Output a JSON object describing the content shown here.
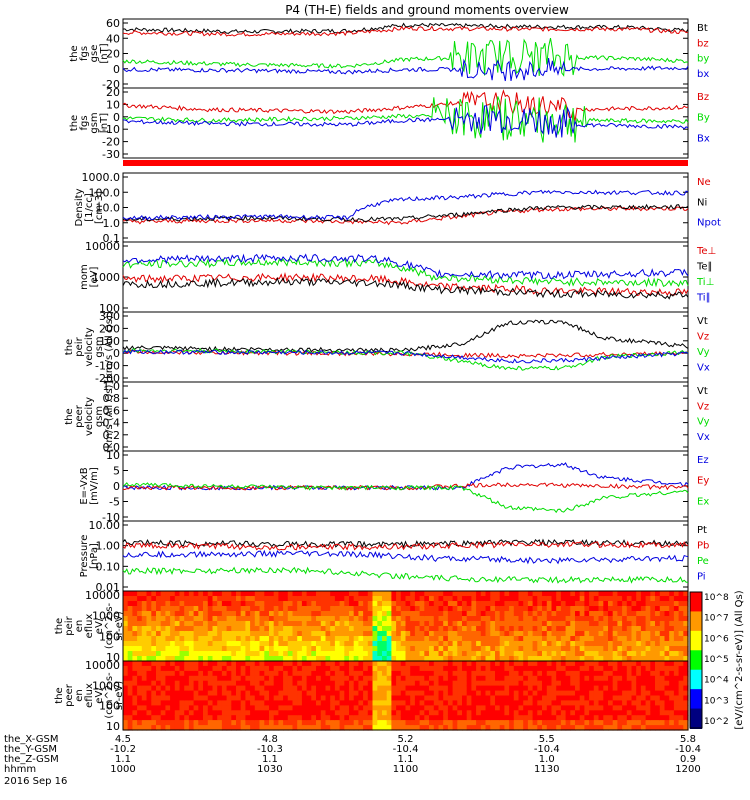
{
  "title": "P4 (TH-E) fields and ground moments overview",
  "colors": {
    "black": "#000000",
    "red": "#e00000",
    "green": "#00dd00",
    "blue": "#0000e0"
  },
  "chart_data": [
    {
      "id": "fgs_gse",
      "type": "line",
      "ylabel": [
        "the",
        "fgs",
        "gse",
        "[nT]"
      ],
      "yticks": [
        60,
        40,
        20,
        0,
        -20
      ],
      "ylim": [
        -20,
        62
      ],
      "series": [
        {
          "name": "Bt",
          "color": "black",
          "points": [
            [
              0,
              50
            ],
            [
              0.2,
              47
            ],
            [
              0.4,
              48
            ],
            [
              0.5,
              55
            ],
            [
              0.7,
              53
            ],
            [
              0.9,
              52
            ],
            [
              1,
              48
            ]
          ]
        },
        {
          "name": "bz",
          "color": "red",
          "points": [
            [
              0,
              46
            ],
            [
              0.2,
              44
            ],
            [
              0.4,
              45
            ],
            [
              0.5,
              51
            ],
            [
              0.7,
              50
            ],
            [
              0.9,
              50
            ],
            [
              1,
              46
            ]
          ]
        },
        {
          "name": "by",
          "color": "green",
          "points": [
            [
              0,
              12
            ],
            [
              0.2,
              8
            ],
            [
              0.4,
              6
            ],
            [
              0.5,
              14
            ],
            [
              0.7,
              18
            ],
            [
              0.9,
              15
            ],
            [
              1,
              12
            ]
          ],
          "osc": [
            [
              0.58,
              0.8,
              22
            ]
          ]
        },
        {
          "name": "bx",
          "color": "blue",
          "points": [
            [
              0,
              2
            ],
            [
              0.2,
              1
            ],
            [
              0.4,
              -1
            ],
            [
              0.5,
              2
            ],
            [
              0.7,
              2
            ],
            [
              0.9,
              3
            ],
            [
              1,
              4
            ]
          ],
          "osc": [
            [
              0.6,
              0.78,
              12
            ]
          ]
        }
      ]
    },
    {
      "id": "fgs_gsm",
      "type": "line",
      "ylabel": [
        "the",
        "fgs",
        "gsm",
        "[nT]"
      ],
      "yticks": [
        20,
        10,
        0,
        -10,
        -20,
        -30
      ],
      "ylim": [
        -37,
        28
      ],
      "series": [
        {
          "name": "Bz",
          "color": "red",
          "points": [
            [
              0,
              12
            ],
            [
              0.15,
              8
            ],
            [
              0.4,
              6
            ],
            [
              0.5,
              10
            ],
            [
              0.65,
              16
            ],
            [
              0.8,
              8
            ],
            [
              1,
              10
            ]
          ],
          "osc": [
            [
              0.6,
              0.8,
              10
            ]
          ]
        },
        {
          "name": "By",
          "color": "green",
          "points": [
            [
              0,
              0
            ],
            [
              0.15,
              -2
            ],
            [
              0.4,
              0
            ],
            [
              0.5,
              2
            ],
            [
              0.65,
              0
            ],
            [
              0.8,
              -2
            ],
            [
              1,
              -3
            ]
          ],
          "osc": [
            [
              0.55,
              0.82,
              20
            ]
          ]
        },
        {
          "name": "Bx",
          "color": "blue",
          "points": [
            [
              0,
              -3
            ],
            [
              0.15,
              -5
            ],
            [
              0.4,
              -6
            ],
            [
              0.5,
              -2
            ],
            [
              0.65,
              0
            ],
            [
              0.8,
              -6
            ],
            [
              1,
              -8
            ]
          ],
          "osc": [
            [
              0.58,
              0.8,
              14
            ]
          ]
        }
      ]
    },
    {
      "id": "density",
      "type": "line",
      "scale": "log",
      "ylabel": [
        "Density",
        "[1/cc]",
        "[cm-3]"
      ],
      "yticks": [
        "1000.0",
        "100.0",
        "10.0",
        "1.0",
        "0.1"
      ],
      "ylim": [
        0.1,
        1000
      ],
      "series": [
        {
          "name": "Ne",
          "color": "red",
          "points": [
            [
              0,
              1.5
            ],
            [
              0.25,
              1.8
            ],
            [
              0.4,
              1.5
            ],
            [
              0.5,
              1.3
            ],
            [
              0.6,
              3
            ],
            [
              0.75,
              8
            ],
            [
              1,
              9
            ]
          ]
        },
        {
          "name": "Ni",
          "color": "black",
          "points": [
            [
              0,
              2
            ],
            [
              0.25,
              2.5
            ],
            [
              0.4,
              2
            ],
            [
              0.5,
              2.2
            ],
            [
              0.6,
              4
            ],
            [
              0.75,
              10
            ],
            [
              1,
              11
            ]
          ]
        },
        {
          "name": "Npot",
          "color": "blue",
          "points": [
            [
              0,
              2.5
            ],
            [
              0.25,
              3
            ],
            [
              0.4,
              2.5
            ],
            [
              0.5,
              30
            ],
            [
              0.6,
              40
            ],
            [
              0.75,
              80
            ],
            [
              1,
              70
            ]
          ]
        }
      ]
    },
    {
      "id": "mom_temp",
      "type": "line",
      "scale": "log",
      "ylabel": [
        "mom",
        "[eV]"
      ],
      "yticks": [
        "10000",
        "1000",
        "100"
      ],
      "ylim": [
        50,
        10000
      ],
      "series": [
        {
          "name": "Te⊥",
          "color": "red",
          "points": [
            [
              0,
              600
            ],
            [
              0.3,
              700
            ],
            [
              0.45,
              600
            ],
            [
              0.55,
              350
            ],
            [
              0.75,
              250
            ],
            [
              1,
              220
            ]
          ]
        },
        {
          "name": "Te∥",
          "color": "black",
          "points": [
            [
              0,
              400
            ],
            [
              0.3,
              500
            ],
            [
              0.45,
              450
            ],
            [
              0.55,
              280
            ],
            [
              0.75,
              200
            ],
            [
              1,
              180
            ]
          ]
        },
        {
          "name": "Ti⊥",
          "color": "green",
          "points": [
            [
              0,
              1800
            ],
            [
              0.3,
              2200
            ],
            [
              0.45,
              2000
            ],
            [
              0.55,
              700
            ],
            [
              0.75,
              500
            ],
            [
              1,
              450
            ]
          ]
        },
        {
          "name": "Ti∥",
          "color": "blue",
          "points": [
            [
              0,
              2600
            ],
            [
              0.3,
              3000
            ],
            [
              0.45,
              2800
            ],
            [
              0.55,
              900
            ],
            [
              0.75,
              800
            ],
            [
              1,
              1000
            ]
          ]
        }
      ]
    },
    {
      "id": "peir_velocity",
      "type": "line",
      "ylabel": [
        "the",
        "peir",
        "velocity",
        "gsm",
        "[km/s (All Qs)]"
      ],
      "yticks": [
        300,
        200,
        100,
        0,
        -100,
        -200
      ],
      "ylim": [
        -200,
        310
      ],
      "series": [
        {
          "name": "Vt",
          "color": "black",
          "points": [
            [
              0,
              50
            ],
            [
              0.2,
              40
            ],
            [
              0.5,
              30
            ],
            [
              0.6,
              80
            ],
            [
              0.68,
              230
            ],
            [
              0.78,
              240
            ],
            [
              0.85,
              120
            ],
            [
              1,
              60
            ]
          ]
        },
        {
          "name": "Vz",
          "color": "red",
          "points": [
            [
              0,
              20
            ],
            [
              0.3,
              10
            ],
            [
              0.5,
              5
            ],
            [
              0.7,
              -10
            ],
            [
              1,
              10
            ]
          ]
        },
        {
          "name": "Vy",
          "color": "green",
          "points": [
            [
              0,
              30
            ],
            [
              0.3,
              20
            ],
            [
              0.5,
              10
            ],
            [
              0.68,
              -100
            ],
            [
              0.78,
              -100
            ],
            [
              0.85,
              -20
            ],
            [
              1,
              20
            ]
          ]
        },
        {
          "name": "Vx",
          "color": "blue",
          "points": [
            [
              0,
              20
            ],
            [
              0.3,
              15
            ],
            [
              0.5,
              10
            ],
            [
              0.7,
              -50
            ],
            [
              0.8,
              -40
            ],
            [
              1,
              10
            ]
          ]
        }
      ]
    },
    {
      "id": "peer_velocity",
      "type": "line",
      "ylabel": [
        "the",
        "peer",
        "velocity",
        "gsm",
        "[km/s (All Qs)]"
      ],
      "yticks": [
        "1.0",
        "0.8",
        "0.6",
        "0.4",
        "0.2",
        "0.0"
      ],
      "ylim": [
        0,
        1
      ],
      "series": [
        {
          "name": "Vt",
          "color": "black",
          "points": []
        },
        {
          "name": "Vz",
          "color": "red",
          "points": []
        },
        {
          "name": "Vy",
          "color": "green",
          "points": []
        },
        {
          "name": "Vx",
          "color": "blue",
          "points": []
        }
      ]
    },
    {
      "id": "e_vxb",
      "type": "line",
      "ylabel": [
        "E=-VxB",
        "[mV/m]"
      ],
      "yticks": [
        10,
        5,
        0,
        -5,
        -10
      ],
      "ylim": [
        -10,
        11
      ],
      "series": [
        {
          "name": "Ez",
          "color": "blue",
          "points": [
            [
              0,
              0
            ],
            [
              0.3,
              0
            ],
            [
              0.6,
              0
            ],
            [
              0.68,
              6
            ],
            [
              0.78,
              7
            ],
            [
              0.85,
              3
            ],
            [
              1,
              1
            ]
          ]
        },
        {
          "name": "Ey",
          "color": "red",
          "points": [
            [
              0,
              0
            ],
            [
              0.5,
              0
            ],
            [
              0.7,
              1
            ],
            [
              1,
              0
            ]
          ]
        },
        {
          "name": "Ex",
          "color": "green",
          "points": [
            [
              0,
              1
            ],
            [
              0.3,
              0
            ],
            [
              0.6,
              0
            ],
            [
              0.68,
              -6
            ],
            [
              0.78,
              -7
            ],
            [
              0.85,
              -3
            ],
            [
              1,
              -1
            ]
          ]
        }
      ]
    },
    {
      "id": "pressure",
      "type": "line",
      "scale": "log",
      "ylabel": [
        "Pressure",
        "[nPa]"
      ],
      "yticks": [
        "10.00",
        "1.00",
        "0.10",
        "0.01"
      ],
      "ylim": [
        0.01,
        10
      ],
      "series": [
        {
          "name": "Pt",
          "color": "black",
          "points": [
            [
              0,
              1.2
            ],
            [
              0.3,
              1.0
            ],
            [
              0.5,
              1.0
            ],
            [
              0.7,
              1.2
            ],
            [
              1,
              1.1
            ]
          ]
        },
        {
          "name": "Pb",
          "color": "red",
          "points": [
            [
              0,
              0.9
            ],
            [
              0.3,
              0.75
            ],
            [
              0.5,
              0.8
            ],
            [
              0.7,
              1.0
            ],
            [
              1,
              0.95
            ]
          ]
        },
        {
          "name": "Pe",
          "color": "green",
          "points": [
            [
              0,
              0.07
            ],
            [
              0.3,
              0.08
            ],
            [
              0.45,
              0.05
            ],
            [
              0.55,
              0.035
            ],
            [
              0.75,
              0.03
            ],
            [
              1,
              0.03
            ]
          ]
        },
        {
          "name": "Pi",
          "color": "blue",
          "points": [
            [
              0,
              0.35
            ],
            [
              0.3,
              0.4
            ],
            [
              0.45,
              0.35
            ],
            [
              0.55,
              0.25
            ],
            [
              0.75,
              0.2
            ],
            [
              1,
              0.25
            ]
          ]
        }
      ]
    },
    {
      "id": "peir_eflux",
      "type": "heatmap",
      "ylabel": [
        "the",
        "peir",
        "en",
        "eflux",
        "eV/",
        "(cm^2-s-",
        "sr-eV)"
      ],
      "yticks": [
        "10000",
        "1000",
        "100",
        "10"
      ]
    },
    {
      "id": "peer_eflux",
      "type": "heatmap",
      "ylabel": [
        "the",
        "peer",
        "en",
        "eflux",
        "eV/",
        "(cm^2-s-",
        "sr-eV)"
      ],
      "yticks": [
        "10000",
        "1000",
        "100",
        "10"
      ]
    }
  ],
  "colorbar": {
    "label": "[eV/(cm^2-s-sr-eV)] (All Qs)",
    "ticks": [
      "10^8",
      "10^7",
      "10^6",
      "10^5",
      "10^4",
      "10^3",
      "10^2"
    ]
  },
  "xaxis": {
    "rows": [
      {
        "label": "the_X-GSM",
        "values": [
          "-10.2",
          "-10.3",
          "-10.4",
          "-10.4",
          "-10.4"
        ],
        "extra": [
          "4.5",
          "4.8",
          "5.2",
          "5.5",
          "5.8"
        ]
      },
      {
        "label": "the_Y-GSM",
        "values": [
          "1.1",
          "1.1",
          "1.1",
          "1.0",
          "0.9"
        ]
      },
      {
        "label": "the_Z-GSM",
        "values": []
      },
      {
        "label": "hhmm",
        "values": [
          "1000",
          "1030",
          "1100",
          "1130",
          "1200"
        ]
      }
    ],
    "date": "2016 Sep 16"
  }
}
